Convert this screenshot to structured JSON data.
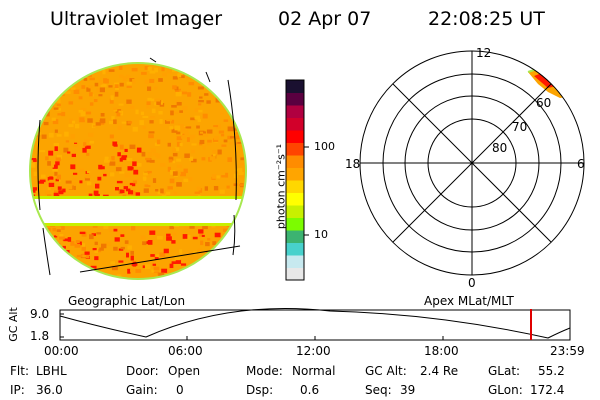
{
  "header": {
    "title": "Ultraviolet Imager",
    "date": "02 Apr 07",
    "time": "22:08:25 UT"
  },
  "colorbar": {
    "unit_label": "photon cm⁻²s⁻¹",
    "ticks": [
      {
        "value": 100,
        "label": "100"
      },
      {
        "value": 10,
        "label": "10"
      }
    ],
    "colors": [
      "#e8e8e8",
      "#c7e9ef",
      "#48d1cc",
      "#3cb371",
      "#7cfc00",
      "#c8f000",
      "#ffff00",
      "#ffd700",
      "#ffa500",
      "#ff8c00",
      "#ff4500",
      "#ff0000",
      "#d2002a",
      "#b00040",
      "#5a0040",
      "#1a1030"
    ]
  },
  "geo_panel": {
    "label": "Geographic Lat/Lon",
    "colors": {
      "base": "#fca400",
      "hot": "#ff1a00",
      "edge": "#a8e850"
    }
  },
  "polar_panel": {
    "label": "Apex MLat/MLT",
    "mlt_labels": {
      "top": "12",
      "bottom": "0",
      "left": "18",
      "right": "6"
    },
    "lat_labels": [
      "60",
      "70",
      "80"
    ]
  },
  "altitude_plot": {
    "y_axis_label": "GC Alt",
    "y_ticks": [
      "9.0",
      "1.8"
    ],
    "x_ticks": [
      "00:00",
      "06:00",
      "12:00",
      "18:00",
      "23:59"
    ],
    "current_time_marker": {
      "color": "#e00000"
    }
  },
  "status": {
    "flt_label": "Flt:",
    "flt_value": "LBHL",
    "ip_label": "IP:",
    "ip_value": "36.0",
    "door_label": "Door:",
    "door_value": "Open",
    "gain_label": "Gain:",
    "gain_value": "0",
    "mode_label": "Mode:",
    "mode_value": "Normal",
    "dsp_label": "Dsp:",
    "dsp_value": "0.6",
    "gcalt_label": "GC Alt:",
    "gcalt_value": "2.4 Re",
    "seq_label": "Seq:",
    "seq_value": "39",
    "glat_label": "GLat:",
    "glat_value": "55.2",
    "glon_label": "GLon:",
    "glon_value": "172.4"
  }
}
